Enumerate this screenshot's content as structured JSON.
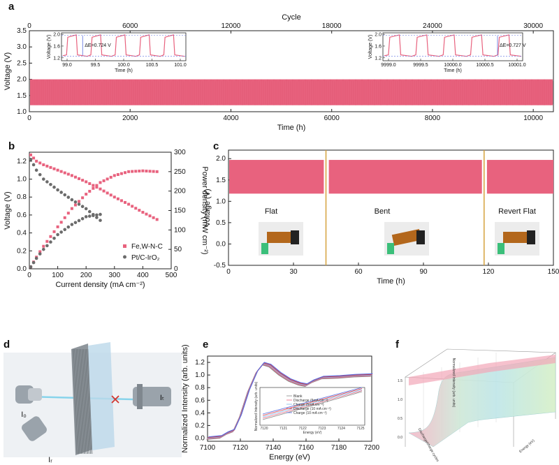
{
  "panels": {
    "a": "a",
    "b": "b",
    "c": "c",
    "d": "d",
    "e": "e",
    "f": "f"
  },
  "colors": {
    "pink": "#e8627e",
    "gray": "#6b6b6b",
    "orange": "#d6a23c",
    "blue": "#5b6fe0"
  },
  "chart_data": [
    {
      "id": "a",
      "type": "line",
      "xlabel": "Time (h)",
      "ylabel": "Voltage (V)",
      "top_axis_label": "Cycle",
      "xticks": [
        "0",
        "2000",
        "4000",
        "6000",
        "8000",
        "10000"
      ],
      "top_ticks": [
        "0",
        "6000",
        "12000",
        "18000",
        "24000",
        "30000"
      ],
      "yticks": [
        "1.0",
        "1.5",
        "2.0",
        "2.5",
        "3.0",
        "3.5"
      ],
      "xlim": [
        0,
        10400
      ],
      "ylim": [
        1.0,
        3.5
      ],
      "series": [
        {
          "values_range": [
            1.2,
            2.0
          ]
        }
      ],
      "inset1": {
        "xlabel": "Time (h)",
        "ylabel": "Voltage (V)",
        "xticks": [
          "99.0",
          "99.5",
          "100.0",
          "100.5",
          "101.0"
        ],
        "yticks": [
          "1.2",
          "1.6",
          "2.0"
        ],
        "annotation": "ΔE=0.724 V"
      },
      "inset2": {
        "xlabel": "Time (h)",
        "ylabel": "Voltage (V)",
        "xticks": [
          "9999.0",
          "9999.5",
          "10000.0",
          "10000.5",
          "10001.0"
        ],
        "yticks": [
          "1.2",
          "1.6",
          "2.0"
        ],
        "annotation": "ΔE=0.727 V"
      }
    },
    {
      "id": "b",
      "type": "scatter",
      "xlabel": "Current density (mA cm⁻²)",
      "ylabel": "Voltage (V)",
      "y2label": "Power density (mW cm⁻²)",
      "xticks": [
        "0",
        "100",
        "200",
        "300",
        "400",
        "500"
      ],
      "yticks": [
        "0.0",
        "0.2",
        "0.4",
        "0.6",
        "0.8",
        "1.0",
        "1.2"
      ],
      "y2ticks": [
        "0",
        "50",
        "100",
        "150",
        "200",
        "250",
        "300"
      ],
      "xlim": [
        0,
        500
      ],
      "ylim": [
        0,
        1.3
      ],
      "y2lim": [
        0,
        300
      ],
      "legend": [
        "Fe,W-N-C",
        "Pt/C-IrO₂"
      ],
      "series": [
        {
          "name": "Fe,W-N-C",
          "voltage": [
            [
              5,
              1.27
            ],
            [
              25,
              1.2
            ],
            [
              50,
              1.16
            ],
            [
              100,
              1.1
            ],
            [
              150,
              1.04
            ],
            [
              200,
              0.97
            ],
            [
              250,
              0.89
            ],
            [
              300,
              0.8
            ],
            [
              350,
              0.72
            ],
            [
              400,
              0.63
            ],
            [
              450,
              0.55
            ]
          ],
          "power": [
            [
              5,
              5
            ],
            [
              25,
              30
            ],
            [
              50,
              58
            ],
            [
              100,
              108
            ],
            [
              150,
              155
            ],
            [
              200,
              192
            ],
            [
              250,
              222
            ],
            [
              300,
              240
            ],
            [
              350,
              250
            ],
            [
              400,
              252
            ],
            [
              450,
              250
            ]
          ]
        },
        {
          "name": "Pt/C-IrO₂",
          "voltage": [
            [
              5,
              1.22
            ],
            [
              25,
              1.1
            ],
            [
              50,
              1.0
            ],
            [
              100,
              0.88
            ],
            [
              150,
              0.77
            ],
            [
              200,
              0.67
            ],
            [
              250,
              0.54
            ]
          ],
          "power": [
            [
              5,
              5
            ],
            [
              25,
              27
            ],
            [
              50,
              50
            ],
            [
              100,
              88
            ],
            [
              150,
              114
            ],
            [
              200,
              134
            ],
            [
              250,
              140
            ]
          ]
        }
      ]
    },
    {
      "id": "c",
      "type": "line",
      "xlabel": "Time (h)",
      "ylabel": "Voltage (V)",
      "xticks": [
        "0",
        "30",
        "60",
        "90",
        "120",
        "150"
      ],
      "yticks": [
        "-0.5",
        "0.0",
        "0.5",
        "1.0",
        "1.5",
        "2.0"
      ],
      "xlim": [
        0,
        150
      ],
      "ylim": [
        -0.5,
        2.2
      ],
      "segments": [
        "Flat",
        "Bent",
        "Revert Flat"
      ],
      "dividers": [
        45,
        118
      ]
    },
    {
      "id": "d",
      "type": "diagram",
      "labels": [
        "I₀",
        "Iᵣ",
        "Iₜ"
      ]
    },
    {
      "id": "e",
      "type": "line",
      "xlabel": "Energy (eV)",
      "ylabel": "Normalized Intensity (arb. units)",
      "xticks": [
        "7100",
        "7120",
        "7140",
        "7160",
        "7180",
        "7200"
      ],
      "yticks": [
        "0.0",
        "0.2",
        "0.4",
        "0.6",
        "0.8",
        "1.0",
        "1.2"
      ],
      "xlim": [
        7100,
        7200
      ],
      "ylim": [
        -0.05,
        1.3
      ],
      "inset": {
        "xlabel": "Energy (eV)",
        "ylabel": "Normalized Intensity (arb. units)",
        "xticks": [
          "7120",
          "7121",
          "7122",
          "7123",
          "7124",
          "7125"
        ],
        "legend": [
          "Blank",
          "Discharge (5mA cm⁻²)",
          "Charge (5mA cm⁻²)",
          "Discharge (10 mA cm⁻²)",
          "Charge (10 mA cm⁻²)"
        ]
      }
    },
    {
      "id": "f",
      "type": "surface",
      "zlabel": "Normalized Intensity (arb. units)",
      "xlabel": "Energy (eV)",
      "ylabel": "Discharge/charge cycles",
      "zticks": [
        "0.0",
        "0.5",
        "1.0",
        "1.5"
      ]
    }
  ]
}
